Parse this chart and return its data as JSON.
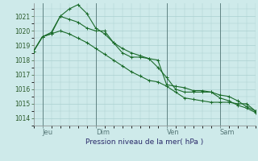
{
  "background_color": "#ceeaea",
  "grid_color": "#aacfcf",
  "line_color": "#1a6b2a",
  "ylabel_text": "Pression niveau de la mer( hPa )",
  "ylim": [
    1013.5,
    1021.9
  ],
  "yticks": [
    1014,
    1015,
    1016,
    1017,
    1018,
    1019,
    1020,
    1021
  ],
  "xtick_labels": [
    "Jeu",
    "Dim",
    "Ven",
    "Sam"
  ],
  "xtick_positions": [
    1,
    7,
    15,
    21
  ],
  "vline_positions": [
    1,
    7,
    15,
    21
  ],
  "total_points": 26,
  "series": [
    [
      1018.6,
      1019.6,
      1019.8,
      1021.0,
      1020.8,
      1020.6,
      1020.2,
      1020.0,
      1020.0,
      1019.2,
      1018.5,
      1018.2,
      1018.2,
      1018.1,
      1017.5,
      1016.8,
      1016.0,
      1015.8,
      1015.8,
      1015.8,
      1015.8,
      1015.6,
      1015.5,
      1015.2,
      1014.8,
      1014.5
    ],
    [
      1018.6,
      1019.6,
      1019.9,
      1021.0,
      1021.5,
      1021.8,
      1021.2,
      1020.2,
      1019.8,
      1019.2,
      1018.8,
      1018.5,
      1018.3,
      1018.1,
      1018.0,
      1016.3,
      1016.2,
      1016.1,
      1015.9,
      1015.9,
      1015.8,
      1015.4,
      1015.2,
      1014.9,
      1014.7,
      1014.4
    ],
    [
      1018.6,
      1019.6,
      1019.8,
      1020.0,
      1019.8,
      1019.5,
      1019.2,
      1018.8,
      1018.4,
      1018.0,
      1017.6,
      1017.2,
      1016.9,
      1016.6,
      1016.5,
      1016.2,
      1015.8,
      1015.4,
      1015.3,
      1015.2,
      1015.1,
      1015.1,
      1015.1,
      1015.0,
      1015.0,
      1014.5
    ]
  ]
}
